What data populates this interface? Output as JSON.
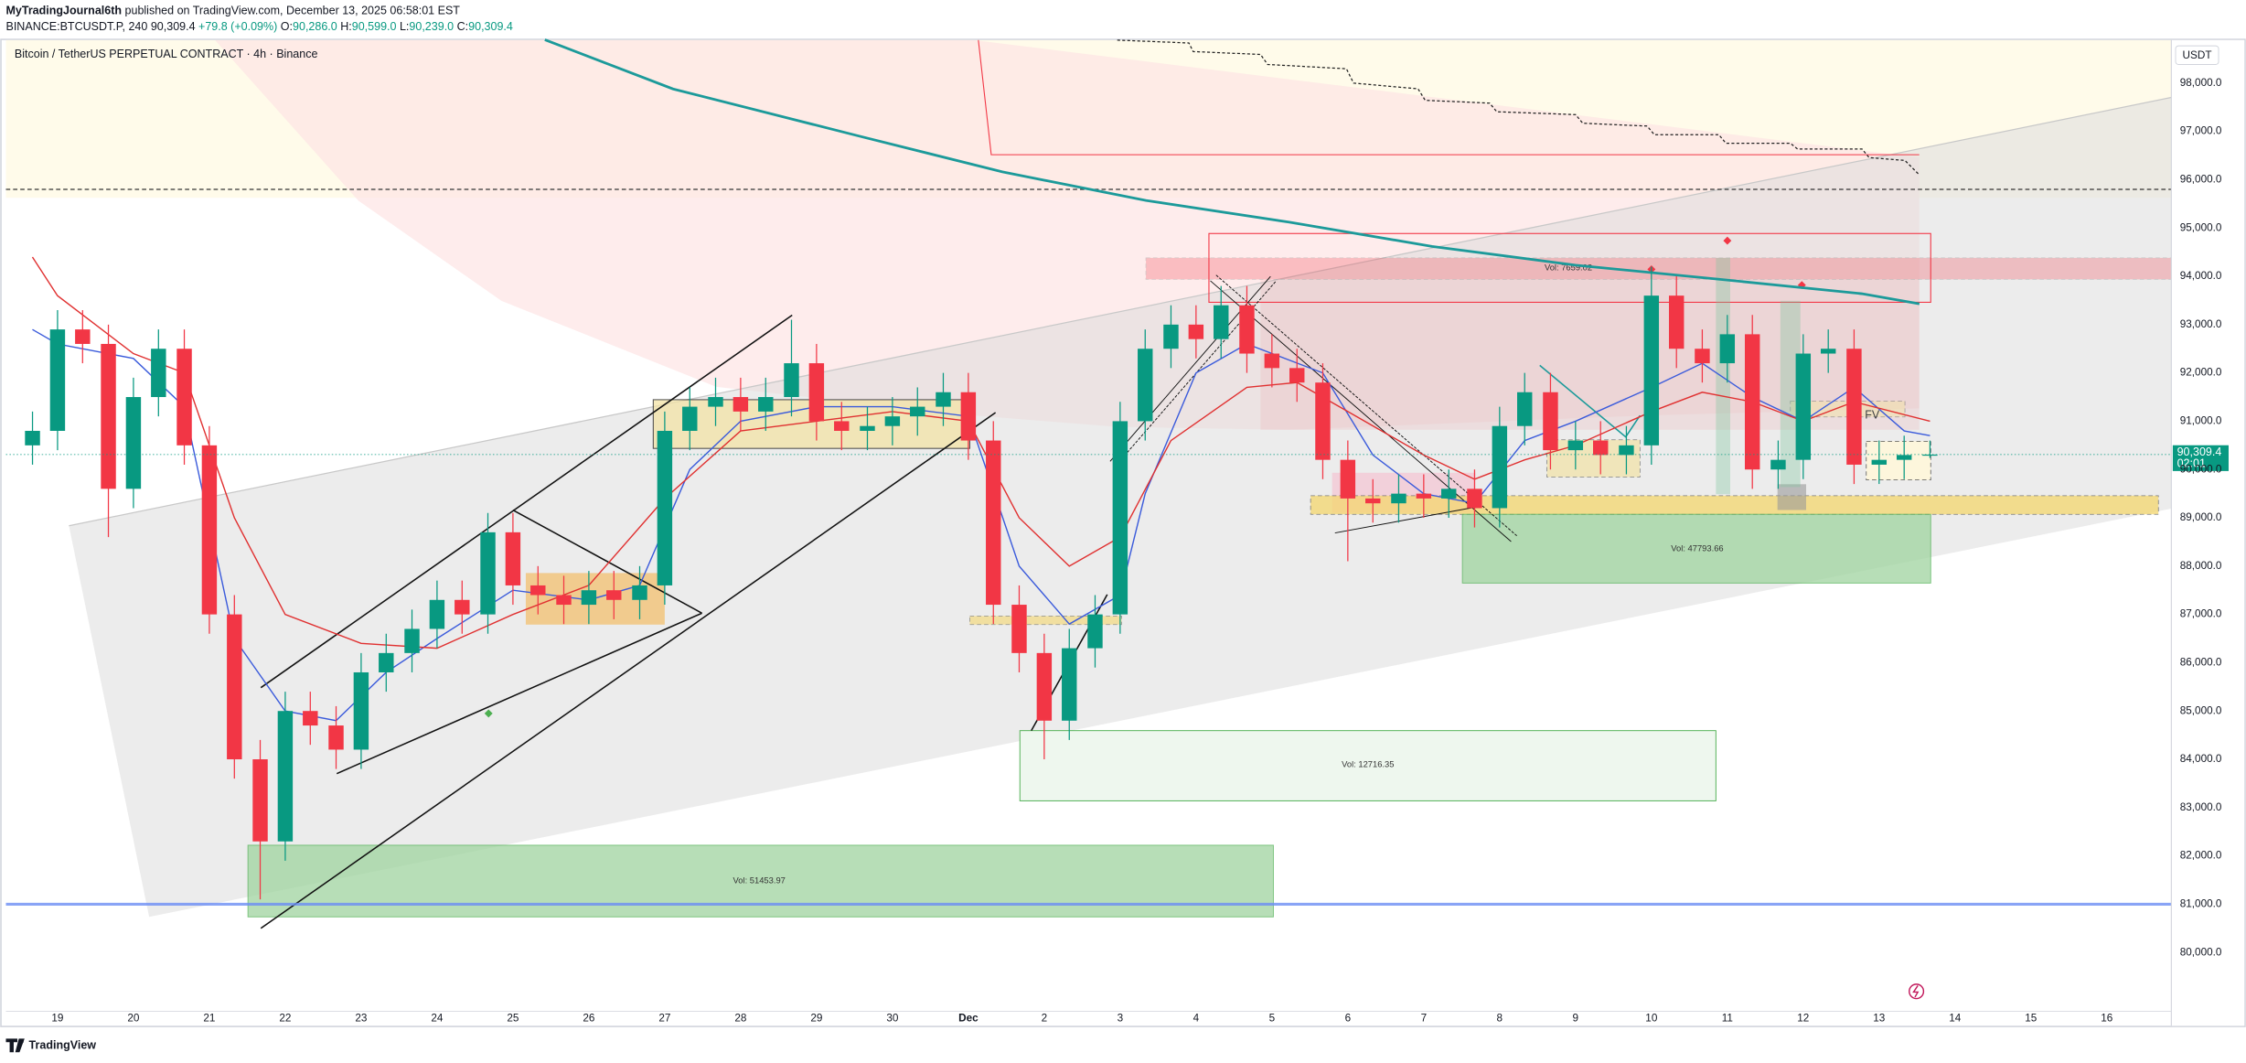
{
  "header": {
    "author": "MyTradingJournal6th",
    "published": "published on TradingView.com, December 13, 2025 06:58:01 EST",
    "symbol": "BINANCE:BTCUSDT.P, 240",
    "price": "90,309.4",
    "change": "+79.8 (+0.09%)",
    "ohlc": [
      {
        "key": "O:",
        "value": "90,286.0"
      },
      {
        "key": "H:",
        "value": "90,599.0"
      },
      {
        "key": "L:",
        "value": "90,239.0"
      },
      {
        "key": "C:",
        "value": "90,309.4"
      }
    ]
  },
  "chart_data": {
    "type": "candlestick",
    "title": "Bitcoin / TetherUS PERPETUAL CONTRACT · 4h · Binance",
    "y_unit": "USDT",
    "up_color": "#089981",
    "down_color": "#f23645",
    "x": [
      18.67,
      19,
      19.33,
      19.67,
      20,
      20.33,
      20.67,
      21,
      21.33,
      21.67,
      22,
      22.33,
      22.67,
      23,
      23.33,
      23.67,
      24,
      24.33,
      24.67,
      25,
      25.33,
      25.67,
      26,
      26.33,
      26.67,
      27,
      27.33,
      27.67,
      28,
      28.33,
      28.67,
      29,
      29.33,
      29.67,
      30,
      30.33,
      30.67,
      31,
      31.33,
      31.67,
      32,
      32.33,
      32.67,
      33,
      33.33,
      33.67,
      34,
      34.33,
      34.67,
      35,
      35.33,
      35.67,
      36,
      36.33,
      36.67,
      37,
      37.33,
      37.67,
      38,
      38.33,
      38.67,
      39,
      39.33,
      39.67,
      40,
      40.33,
      40.67,
      41,
      41.33,
      41.67,
      42,
      42.33,
      42.67,
      43,
      43.33,
      43.67
    ],
    "open": [
      90500,
      90800,
      92900,
      92600,
      89600,
      91500,
      92500,
      90500,
      87000,
      84000,
      82300,
      85000,
      84700,
      84200,
      85800,
      86200,
      86700,
      87300,
      87000,
      88700,
      87600,
      87400,
      87200,
      87500,
      87300,
      87600,
      90800,
      91300,
      91500,
      91200,
      91500,
      92200,
      91000,
      90800,
      90900,
      91100,
      91300,
      91600,
      90600,
      87200,
      86200,
      84800,
      86300,
      87000,
      91000,
      92500,
      93000,
      92700,
      93400,
      92400,
      92100,
      91800,
      90200,
      89400,
      89300,
      89500,
      89400,
      89600,
      89200,
      90900,
      91600,
      90400,
      90600,
      90300,
      90500,
      93600,
      92500,
      92200,
      92800,
      90000,
      90200,
      92400,
      92500,
      90100,
      90200,
      90286
    ],
    "high": [
      91200,
      93300,
      93300,
      93000,
      91900,
      92900,
      92900,
      90900,
      87400,
      84400,
      85400,
      85400,
      85100,
      86200,
      86600,
      87100,
      87700,
      87700,
      89100,
      89100,
      88000,
      87800,
      87900,
      87900,
      88000,
      91200,
      91700,
      91900,
      91900,
      91900,
      93100,
      92600,
      91400,
      91300,
      91500,
      91700,
      92000,
      92000,
      91000,
      87600,
      86600,
      86700,
      87400,
      91400,
      92900,
      93400,
      93400,
      93800,
      93800,
      92800,
      92500,
      92200,
      90600,
      89800,
      89900,
      89900,
      90000,
      90000,
      91300,
      92000,
      92000,
      91000,
      91000,
      90900,
      94200,
      94000,
      92900,
      93200,
      93200,
      90600,
      92800,
      92900,
      92900,
      90600,
      90700,
      90599
    ],
    "low": [
      90100,
      90400,
      92200,
      88600,
      89200,
      91100,
      90100,
      86600,
      83600,
      81100,
      81900,
      84300,
      83800,
      83800,
      85400,
      85800,
      86300,
      86600,
      86600,
      87200,
      87000,
      86800,
      86800,
      86900,
      86900,
      87200,
      90400,
      90900,
      90800,
      90800,
      91100,
      90600,
      90400,
      90400,
      90500,
      90700,
      90900,
      90200,
      86800,
      85800,
      84000,
      84400,
      85900,
      86600,
      90600,
      92100,
      92300,
      92300,
      92000,
      91700,
      91400,
      89800,
      88100,
      88900,
      88900,
      89000,
      89000,
      88800,
      88800,
      90500,
      90000,
      90000,
      89900,
      89900,
      90100,
      92100,
      91800,
      91800,
      89600,
      89600,
      89800,
      92000,
      89700,
      89700,
      89800,
      90239
    ],
    "close": [
      90800,
      92900,
      92600,
      89600,
      91500,
      92500,
      90500,
      87000,
      84000,
      82300,
      85000,
      84700,
      84200,
      85800,
      86200,
      86700,
      87300,
      87000,
      88700,
      87600,
      87400,
      87200,
      87500,
      87300,
      87600,
      90800,
      91300,
      91500,
      91200,
      91500,
      92200,
      91000,
      90800,
      90900,
      91100,
      91300,
      91600,
      90600,
      87200,
      86200,
      84800,
      86300,
      87000,
      91000,
      92500,
      93000,
      92700,
      93400,
      92400,
      92100,
      91800,
      90200,
      89400,
      89300,
      89500,
      89400,
      89600,
      89200,
      90900,
      91600,
      90400,
      90600,
      90300,
      90500,
      93600,
      92500,
      92200,
      92800,
      90000,
      90200,
      92400,
      92500,
      90100,
      90200,
      90300,
      90309.4
    ],
    "lines": [
      {
        "color": "#3b5bdb",
        "x": [
          18.67,
          19,
          20,
          20.67,
          21.33,
          22,
          22.67,
          23.33,
          24,
          25,
          26,
          26.67,
          27.33,
          28,
          29,
          30,
          31,
          31.67,
          32.33,
          33,
          33.33,
          34,
          34.67,
          35.67,
          36.33,
          37,
          37.67,
          38.33,
          39,
          40,
          40.67,
          41.33,
          42,
          42.67,
          43.33,
          43.67
        ],
        "values": [
          92900,
          92600,
          92300,
          91300,
          86500,
          85000,
          84800,
          85800,
          86500,
          87500,
          87300,
          87600,
          90000,
          91000,
          91300,
          91300,
          91100,
          88000,
          86800,
          87400,
          89500,
          92000,
          92600,
          92000,
          90300,
          89500,
          89300,
          90600,
          91000,
          91700,
          92200,
          91500,
          91000,
          91700,
          90800,
          90700
        ]
      },
      {
        "color": "#e03131",
        "x": [
          18.67,
          19,
          20,
          20.67,
          21.33,
          22,
          23,
          24,
          25,
          26,
          27,
          28,
          29,
          30,
          31,
          31.67,
          32.33,
          33,
          33.67,
          34.67,
          35.33,
          36,
          37,
          37.67,
          38.33,
          39,
          40,
          40.67,
          41.33,
          42,
          42.67,
          43.67
        ],
        "values": [
          94400,
          93600,
          92400,
          92000,
          89000,
          87000,
          86400,
          86300,
          87000,
          87600,
          89400,
          90800,
          91000,
          91200,
          91000,
          89000,
          88000,
          88600,
          90600,
          91700,
          91800,
          91200,
          90300,
          89800,
          90200,
          90500,
          91200,
          91600,
          91400,
          91000,
          91400,
          91000
        ]
      },
      {
        "color": "#1c9a9a",
        "x": [
          25.42,
          27.11,
          29.57,
          31.45,
          33.34,
          35.23,
          37.11,
          39,
          40.89,
          42.77,
          43.53
        ],
        "values": [
          98900,
          97880,
          96900,
          96160,
          95570,
          95120,
          94620,
          94230,
          93940,
          93640,
          93430
        ]
      }
    ],
    "hlines": [
      {
        "value": 81000,
        "color": "#6c8ef5",
        "dashed": false
      },
      {
        "value": 95800,
        "color": "#333333",
        "dashed": true
      }
    ],
    "last_price": {
      "value": 90309.4,
      "label": "90,309.4"
    },
    "countdown": "02:01",
    "xlim": [
      18.32,
      46.85
    ],
    "ylim": [
      78780,
      98890
    ],
    "xticks": [
      19,
      20,
      21,
      22,
      23,
      24,
      25,
      26,
      27,
      28,
      29,
      30,
      {
        "value": 31,
        "label": "Dec"
      },
      {
        "value": 32,
        "label": "2"
      },
      {
        "value": 33,
        "label": "3"
      },
      {
        "value": 34,
        "label": "4"
      },
      {
        "value": 35,
        "label": "5"
      },
      {
        "value": 36,
        "label": "6"
      },
      {
        "value": 37,
        "label": "7"
      },
      {
        "value": 38,
        "label": "8"
      },
      {
        "value": 39,
        "label": "9"
      },
      {
        "value": 40,
        "label": "10"
      },
      {
        "value": 41,
        "label": "11"
      },
      {
        "value": 42,
        "label": "12"
      },
      {
        "value": 43,
        "label": "13"
      },
      {
        "value": 44,
        "label": "14"
      },
      {
        "value": 45,
        "label": "15"
      },
      {
        "value": 46,
        "label": "16"
      }
    ],
    "yticks": [
      {
        "value": 80000,
        "label": "80,000.0"
      },
      {
        "value": 81000,
        "label": "81,000.0"
      },
      {
        "value": 82000,
        "label": "82,000.0"
      },
      {
        "value": 83000,
        "label": "83,000.0"
      },
      {
        "value": 84000,
        "label": "84,000.0"
      },
      {
        "value": 85000,
        "label": "85,000.0"
      },
      {
        "value": 86000,
        "label": "86,000.0"
      },
      {
        "value": 87000,
        "label": "87,000.0"
      },
      {
        "value": 88000,
        "label": "88,000.0"
      },
      {
        "value": 89000,
        "label": "89,000.0"
      },
      {
        "value": 90000,
        "label": "90,000.0"
      },
      {
        "value": 91000,
        "label": "91,000.0"
      },
      {
        "value": 92000,
        "label": "92,000.0"
      },
      {
        "value": 93000,
        "label": "93,000.0"
      },
      {
        "value": 94000,
        "label": "94,000.0"
      },
      {
        "value": 95000,
        "label": "95,000.0"
      },
      {
        "value": 96000,
        "label": "96,000.0"
      },
      {
        "value": 97000,
        "label": "97,000.0"
      },
      {
        "value": 98000,
        "label": "98,000.0"
      }
    ],
    "grid": false,
    "annotations": {
      "vol_labels": [
        "Vol: 51453.97",
        "Vol: 12716.35",
        "Vol: 47793.66",
        "Vol: 7659.02"
      ],
      "zone_label": "FV"
    }
  },
  "footer": {
    "brand": "TradingView"
  }
}
